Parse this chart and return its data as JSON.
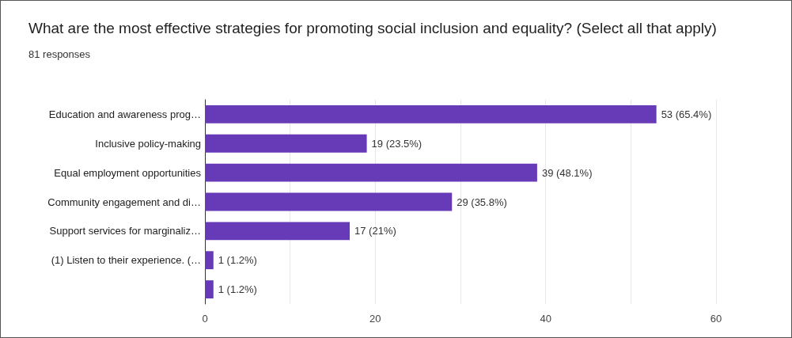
{
  "chart_data": {
    "type": "bar",
    "orientation": "horizontal",
    "title": "What are the most effective strategies for promoting social inclusion and equality? (Select all that apply)",
    "subtitle": "81 responses",
    "categories": [
      "Education and awareness prog…",
      "Inclusive policy-making",
      "Equal employment opportunities",
      "Community engagement and di…",
      "Support services for marginaliz…",
      "(1) Listen to their experience. (…",
      null
    ],
    "values": [
      53,
      19,
      39,
      29,
      17,
      1,
      1
    ],
    "value_labels": [
      "53 (65.4%)",
      "19 (23.5%)",
      "39 (48.1%)",
      "29 (35.8%)",
      "17 (21%)",
      "1 (1.2%)",
      "1 (1.2%)"
    ],
    "color": "#673ab7",
    "xlim": [
      0,
      60
    ],
    "xticks": [
      0,
      {
        "value": 10,
        "label": null
      },
      20,
      {
        "value": 30,
        "label": null
      },
      40,
      {
        "value": 50,
        "label": null
      },
      60
    ],
    "grid": true
  }
}
